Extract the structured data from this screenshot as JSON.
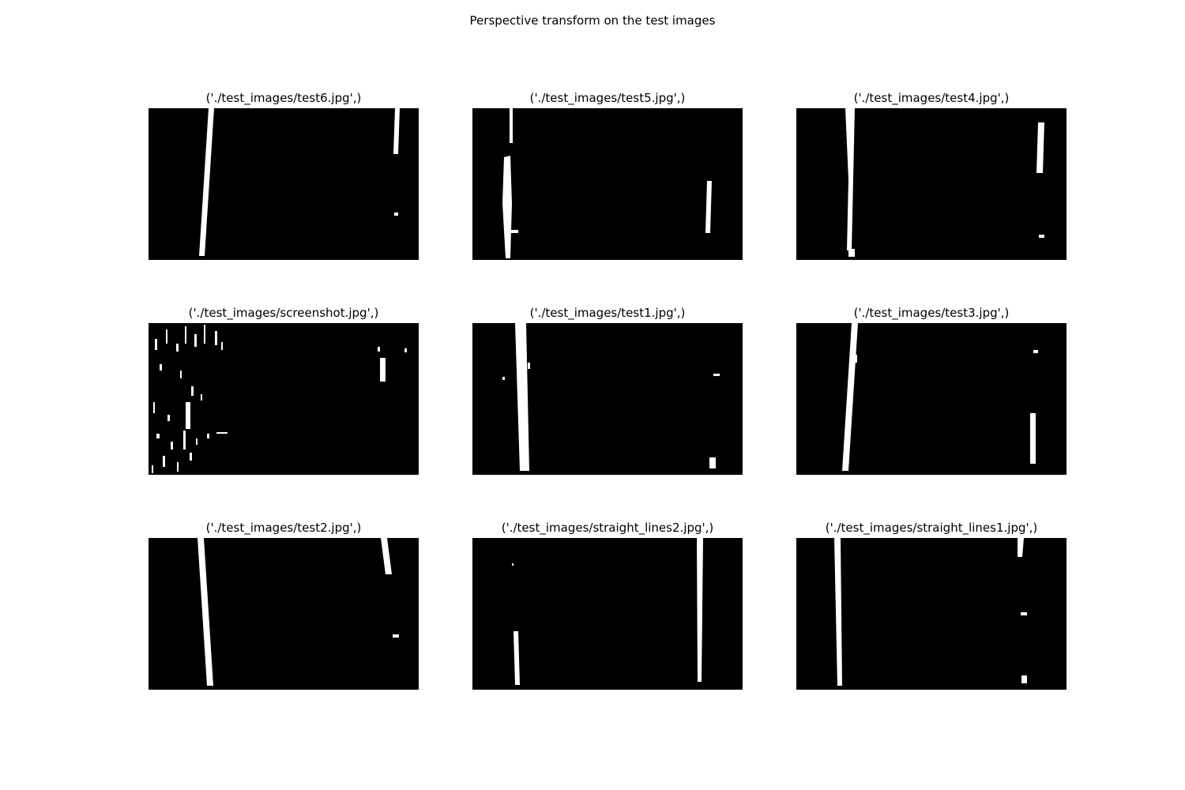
{
  "figure": {
    "title": "Perspective transform on the test images",
    "background_color": "#000000",
    "marking_color": "#ffffff"
  },
  "panels": [
    {
      "title": "('./test_images/test6.jpg',)"
    },
    {
      "title": "('./test_images/test5.jpg',)"
    },
    {
      "title": "('./test_images/test4.jpg',)"
    },
    {
      "title": "('./test_images/screenshot.jpg',)"
    },
    {
      "title": "('./test_images/test1.jpg',)"
    },
    {
      "title": "('./test_images/test3.jpg',)"
    },
    {
      "title": "('./test_images/test2.jpg',)"
    },
    {
      "title": "('./test_images/straight_lines2.jpg',)"
    },
    {
      "title": "('./test_images/straight_lines1.jpg',)"
    }
  ]
}
